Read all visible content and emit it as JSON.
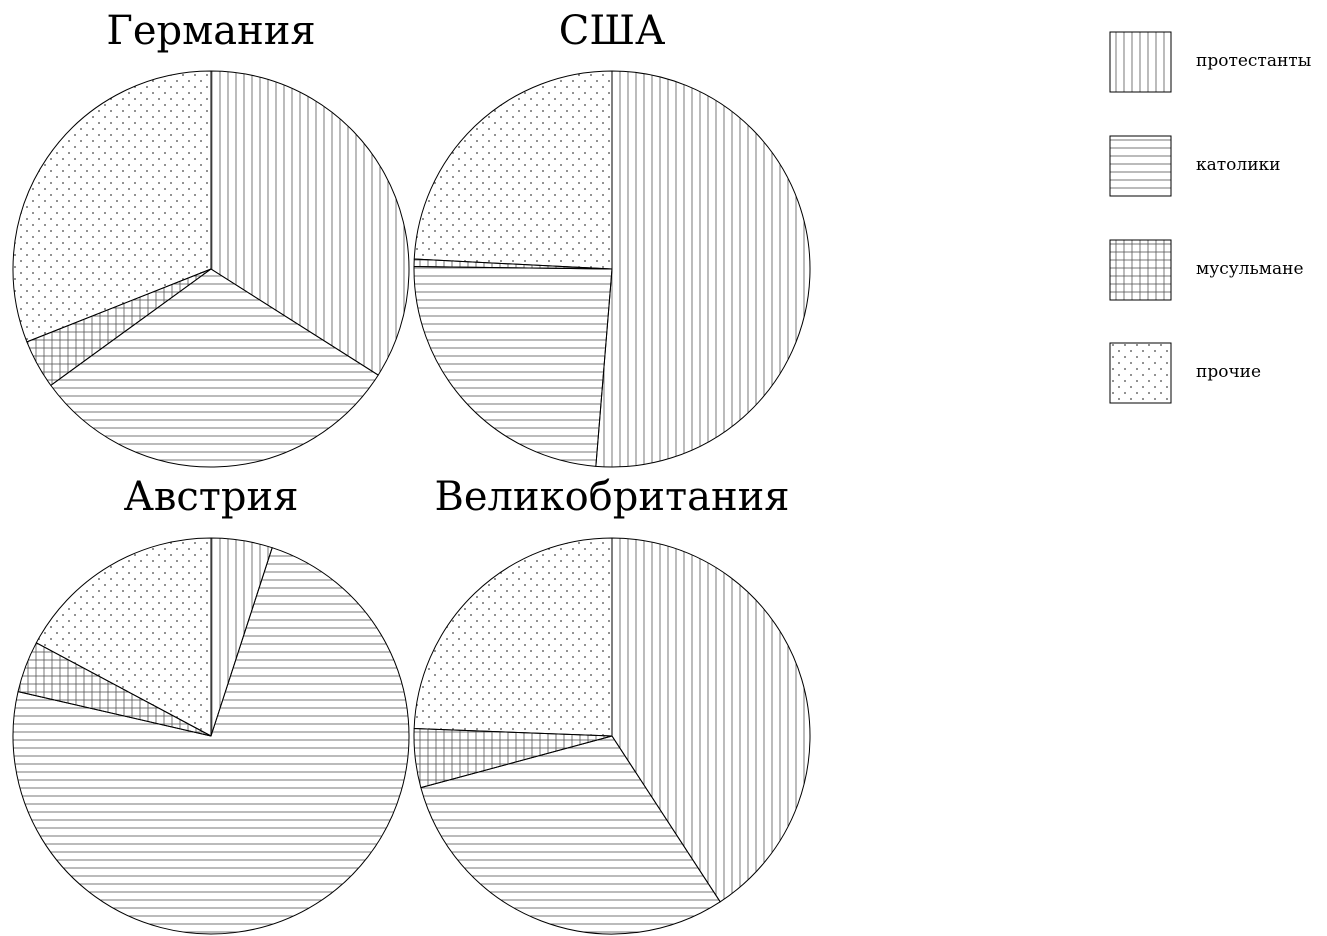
{
  "chart_data": [
    {
      "type": "pie",
      "title": "Германия",
      "categories": [
        "протестанты",
        "католики",
        "мусульмане",
        "прочие"
      ],
      "values": [
        34,
        31,
        4,
        31
      ]
    },
    {
      "type": "pie",
      "title": "США",
      "categories": [
        "протестанты",
        "католики",
        "мусульмане",
        "прочие"
      ],
      "values": [
        51.3,
        23.9,
        0.6,
        24.2
      ]
    },
    {
      "type": "pie",
      "title": "Австрия",
      "categories": [
        "протестанты",
        "католики",
        "мусульмане",
        "прочие"
      ],
      "values": [
        5,
        73.6,
        4.2,
        17.2
      ]
    },
    {
      "type": "pie",
      "title": "Великобритания",
      "categories": [
        "протестанты",
        "католики",
        "мусульмане",
        "прочие"
      ],
      "values": [
        40.8,
        30,
        4.8,
        24.4
      ]
    }
  ],
  "legend": {
    "placement": "top-right",
    "items": [
      {
        "label": "протестанты",
        "pattern": "vertical-lines"
      },
      {
        "label": "католики",
        "pattern": "horizontal-lines"
      },
      {
        "label": "мусульмане",
        "pattern": "grid"
      },
      {
        "label": "прочие",
        "pattern": "dots"
      }
    ]
  }
}
